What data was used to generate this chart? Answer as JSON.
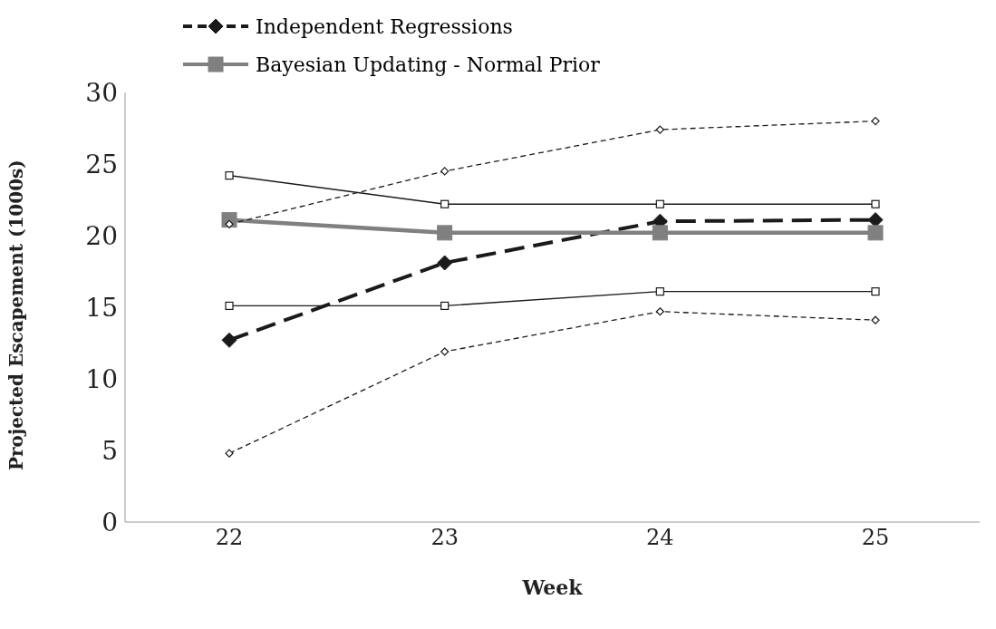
{
  "chart_data": {
    "type": "line",
    "xlabel": "Week",
    "ylabel": "Projected Escapement (1000s)",
    "categories": [
      "22",
      "23",
      "24",
      "25"
    ],
    "series": [
      {
        "name": "Independent Regressions",
        "color": "#1a1a1a",
        "values": [
          12.7,
          18.1,
          21.0,
          21.1
        ],
        "line_style": "dashed",
        "marker": "diamond"
      },
      {
        "name": "Bayesian Updating - Normal Prior",
        "color": "#808080",
        "values": [
          21.1,
          20.2,
          20.2,
          20.2
        ],
        "line_style": "solid",
        "marker": "square"
      },
      {
        "color": "#1a1a1a",
        "values": [
          20.8,
          24.5,
          27.4,
          28.0
        ],
        "line_style": "dashed",
        "marker": "diamond"
      },
      {
        "color": "#1a1a1a",
        "values": [
          4.8,
          11.9,
          14.7,
          14.1
        ],
        "line_style": "dashed",
        "marker": "diamond"
      },
      {
        "color": "#1a1a1a",
        "values": [
          24.2,
          22.2,
          22.2,
          22.2
        ],
        "line_style": "solid",
        "marker": "square"
      },
      {
        "color": "#1a1a1a",
        "values": [
          15.1,
          15.1,
          16.1,
          16.1
        ],
        "line_style": "solid",
        "marker": "square"
      }
    ],
    "ylim": [
      0,
      30
    ],
    "yticks": [
      0,
      5,
      10,
      15,
      20,
      25,
      30
    ],
    "grid": false,
    "legend": "top left"
  }
}
